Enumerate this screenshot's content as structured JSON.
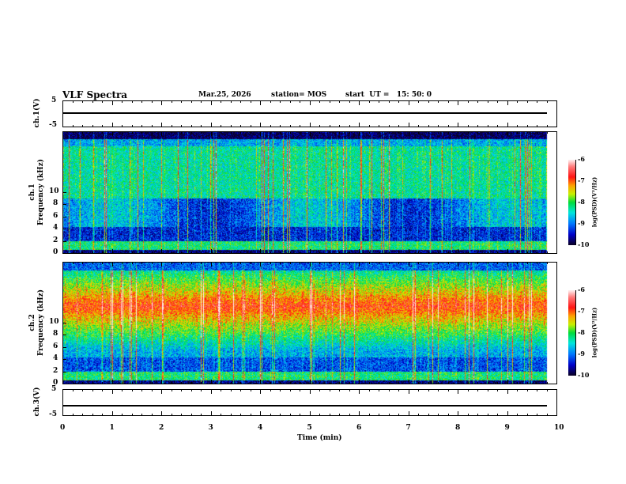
{
  "header": {
    "title": "VLF Spectra",
    "date": "Mar.25, 2026",
    "station": "station= MOS",
    "start": "start  UT =   15: 50: 0"
  },
  "chart_data": [
    {
      "type": "line",
      "name": "ch1-waveform",
      "ylabel": "ch.1(V)",
      "ylim": [
        -5,
        5
      ],
      "yticks": [
        "5",
        "-5"
      ],
      "value_approx": 0
    },
    {
      "type": "heatmap",
      "name": "ch1-spectrogram",
      "ylabel": "ch.1\nFrequency (kHz)",
      "ylabel_lines": [
        "ch.1",
        "Frequency (kHz)"
      ],
      "ylim": [
        0,
        10
      ],
      "yticks": [
        "0",
        "2",
        "4",
        "6",
        "8",
        "10"
      ],
      "colorbar": {
        "label": "log(PSD)(V²/Hz)",
        "ticks": [
          "-6",
          "-7",
          "-8",
          "-9",
          "-10"
        ],
        "range": [
          -10,
          -6
        ]
      },
      "description_bands": {
        "strong_band_kHz": [
          2,
          9
        ],
        "weak_band_kHz": [
          9,
          10
        ]
      }
    },
    {
      "type": "heatmap",
      "name": "ch2-spectrogram",
      "ylabel_lines": [
        "ch.2",
        "Frequency (kHz)"
      ],
      "ylim": [
        0,
        10
      ],
      "yticks": [
        "0",
        "2",
        "4",
        "6",
        "8",
        "10"
      ],
      "colorbar": {
        "label": "log(PSD)(V²/Hz)",
        "ticks": [
          "-6",
          "-7",
          "-8",
          "-9",
          "-10"
        ],
        "range": [
          -10,
          -6
        ]
      },
      "description_bands": {
        "peak_band_kHz": [
          4.5,
          8
        ]
      }
    },
    {
      "type": "line",
      "name": "ch3-waveform",
      "ylabel": "ch.3(V)",
      "ylim": [
        -5,
        5
      ],
      "yticks": [
        "5",
        "-5"
      ],
      "value_approx": 0
    }
  ],
  "xaxis": {
    "label": "Time (min)",
    "ticks": [
      "0",
      "1",
      "2",
      "3",
      "4",
      "5",
      "6",
      "7",
      "8",
      "9",
      "10"
    ],
    "xlim": [
      0,
      10
    ],
    "data_end": 9.8
  }
}
